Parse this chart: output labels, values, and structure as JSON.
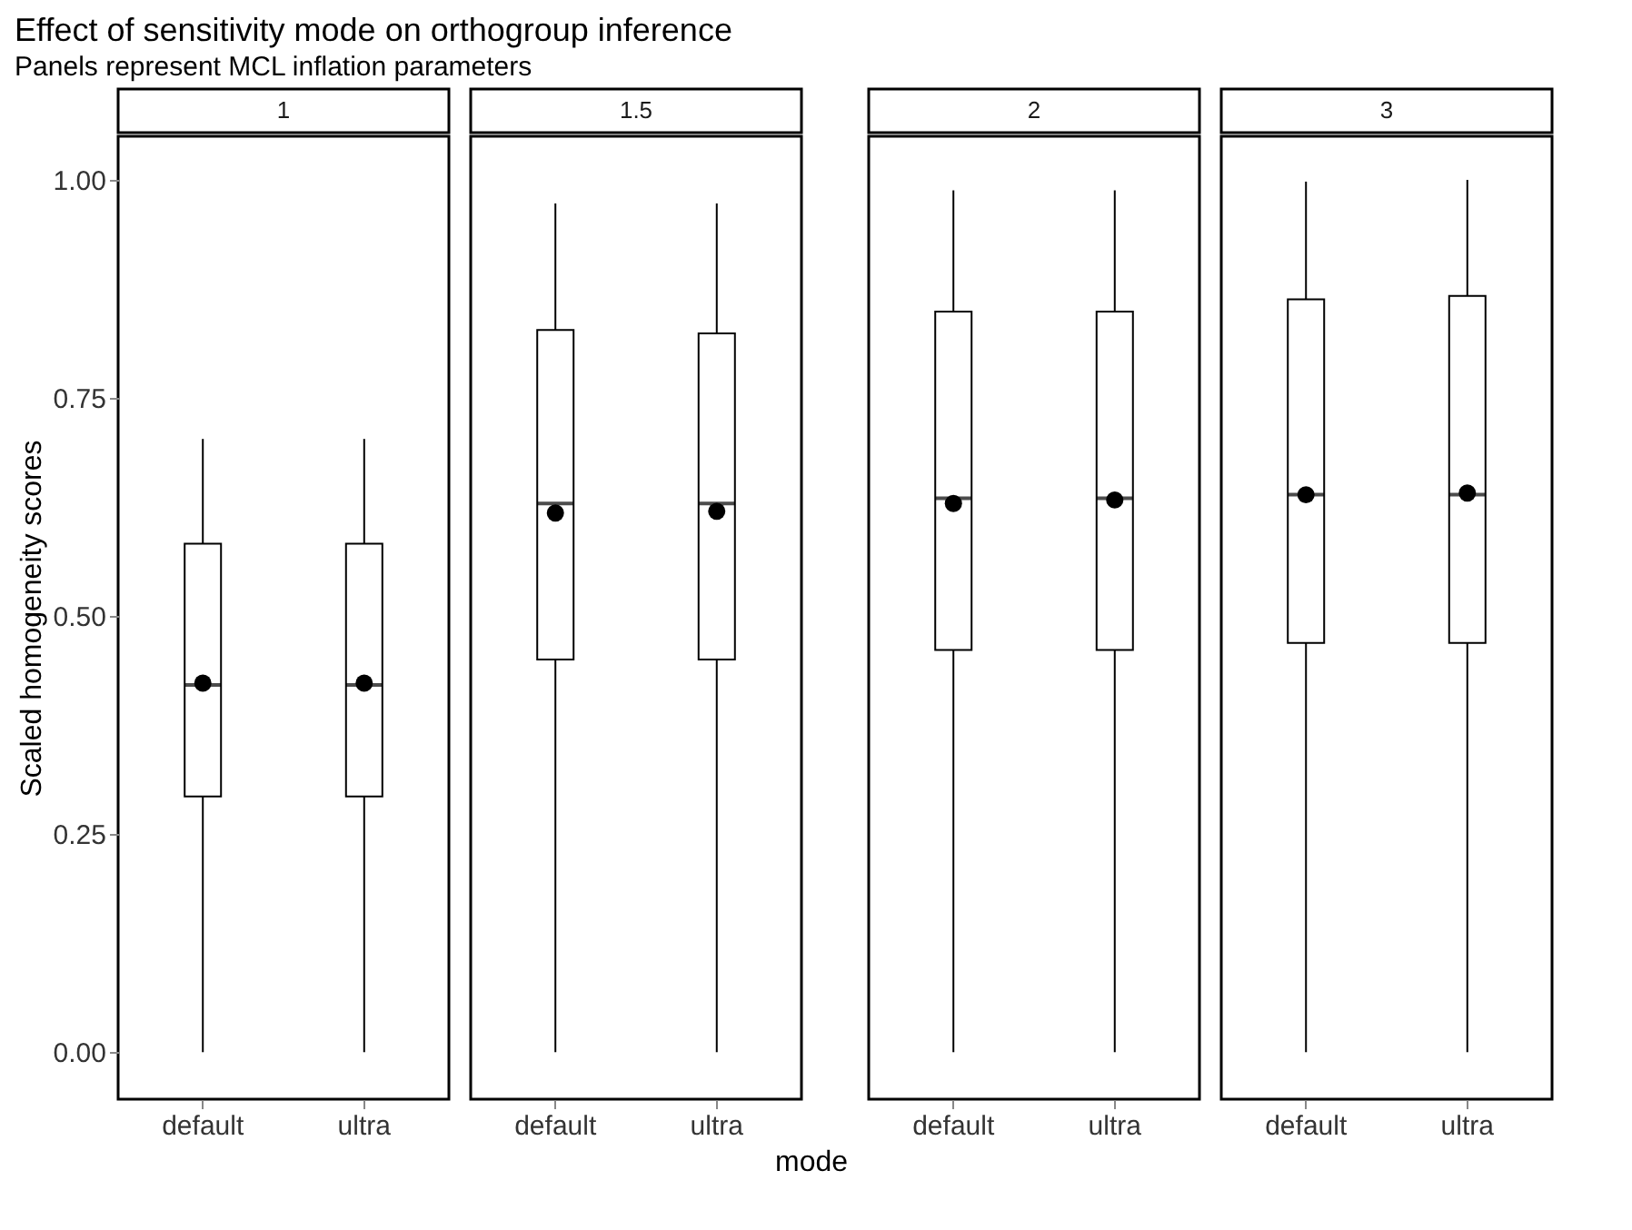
{
  "chart_data": [
    {
      "type": "box",
      "title": "Effect of sensitivity mode on orthogroup inference",
      "subtitle": "Panels represent MCL inflation parameters",
      "ylabel": "Scaled homogeneity scores",
      "annotations": [
        "1"
      ],
      "categories": [
        "default",
        "ultra"
      ],
      "colors": [
        "#ffffff",
        "#ffffff"
      ],
      "boxes": [
        {
          "low": 0,
          "q1": 0.293,
          "median": 0.421,
          "q3": 0.583,
          "high": 0.703,
          "mean": 0.423
        },
        {
          "low": 0,
          "q1": 0.293,
          "median": 0.421,
          "q3": 0.583,
          "high": 0.703,
          "mean": 0.423
        }
      ],
      "ylim": [
        -0.054,
        1.05
      ],
      "yticks": [
        {
          "value": 0,
          "label": "0.00"
        },
        {
          "value": 0.25,
          "label": "0.25"
        },
        {
          "value": 0.5,
          "label": "0.50"
        },
        {
          "value": 0.75,
          "label": "0.75"
        },
        {
          "value": 1,
          "label": "1.00"
        }
      ],
      "grid": false
    },
    {
      "type": "box",
      "xlabel": "mode",
      "annotations": [
        "1.5"
      ],
      "categories": [
        "default",
        "ultra"
      ],
      "colors": [
        "#ffffff",
        "#ffffff"
      ],
      "boxes": [
        {
          "low": 0,
          "q1": 0.45,
          "median": 0.629,
          "q3": 0.828,
          "high": 0.973,
          "mean": 0.618
        },
        {
          "low": 0,
          "q1": 0.45,
          "median": 0.629,
          "q3": 0.824,
          "high": 0.973,
          "mean": 0.62
        }
      ],
      "ylim": [
        -0.054,
        1.05
      ],
      "tick_labels": "x",
      "grid": false
    },
    {
      "type": "box",
      "annotations": [
        "2"
      ],
      "categories": [
        "default",
        "ultra"
      ],
      "colors": [
        "#ffffff",
        "#ffffff"
      ],
      "boxes": [
        {
          "low": 0,
          "q1": 0.461,
          "median": 0.635,
          "q3": 0.849,
          "high": 0.988,
          "mean": 0.629
        },
        {
          "low": 0,
          "q1": 0.461,
          "median": 0.635,
          "q3": 0.849,
          "high": 0.988,
          "mean": 0.633
        }
      ],
      "ylim": [
        -0.054,
        1.05
      ],
      "tick_labels": "x",
      "grid": false
    },
    {
      "type": "box",
      "annotations": [
        "3"
      ],
      "categories": [
        "default",
        "ultra"
      ],
      "colors": [
        "#ffffff",
        "#ffffff"
      ],
      "boxes": [
        {
          "low": 0,
          "q1": 0.469,
          "median": 0.639,
          "q3": 0.863,
          "high": 0.998,
          "mean": 0.639
        },
        {
          "low": 0,
          "q1": 0.469,
          "median": 0.639,
          "q3": 0.867,
          "high": 1.0,
          "mean": 0.641
        }
      ],
      "ylim": [
        -0.054,
        1.05
      ],
      "tick_labels": "x",
      "grid": false
    }
  ]
}
